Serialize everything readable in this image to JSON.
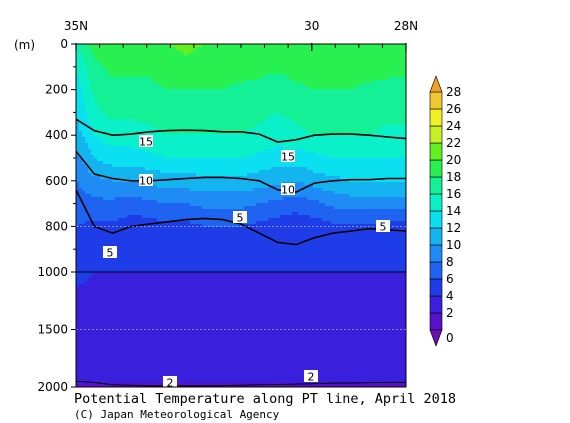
{
  "chart_data": {
    "type": "heatmap",
    "title": "Potential Temperature along PT line, April 2018",
    "credit": "(C) Japan Meteorological Agency",
    "ylabel": "(m)",
    "x_axis": {
      "position": "top",
      "ticks": [
        {
          "label": "35N",
          "lat": 35
        },
        {
          "label": "30",
          "lat": 30
        },
        {
          "label": "28N",
          "lat": 28
        }
      ],
      "range": [
        35,
        28
      ]
    },
    "y_axis": {
      "ticks": [
        0,
        200,
        400,
        600,
        800,
        1000,
        1500,
        2000
      ],
      "range": [
        0,
        2000
      ],
      "scale": "piecewise linear (0–1000 m expanded)"
    },
    "colorbar": {
      "levels": [
        0,
        2,
        4,
        6,
        8,
        10,
        12,
        14,
        16,
        18,
        20,
        22,
        24,
        26,
        28
      ],
      "labels": [
        "0",
        "2",
        "4",
        "6",
        "8",
        "10",
        "12",
        "14",
        "16",
        "18",
        "20",
        "22",
        "24",
        "26",
        "28"
      ],
      "colors": [
        "#5a10c8",
        "#3a20dc",
        "#1e3ce8",
        "#1e64f0",
        "#1e8cf4",
        "#14b4f0",
        "#0ae0f0",
        "#0af0c8",
        "#14f096",
        "#28f050",
        "#64f020",
        "#c8f028",
        "#f0f028",
        "#f0c832"
      ]
    },
    "contour_labels": [
      "15",
      "15",
      "10",
      "10",
      "5",
      "5",
      "5",
      "2",
      "2"
    ],
    "sections": [
      {
        "depth": 0,
        "temps": [
          16,
          19,
          19.5,
          19,
          19.5,
          20,
          20.5,
          20,
          19.5,
          19.5,
          19,
          19.5,
          20,
          19.5,
          19.5,
          20,
          19.5,
          19.5,
          19
        ]
      },
      {
        "depth": 100,
        "temps": [
          14,
          17.5,
          18.5,
          18.5,
          18.5,
          19,
          19.5,
          19,
          19,
          19,
          18.5,
          18.5,
          19,
          19,
          19,
          19,
          19,
          18.5,
          18.5
        ]
      },
      {
        "depth": 200,
        "temps": [
          13,
          16.5,
          17.5,
          17.5,
          17.5,
          18,
          18,
          18,
          18,
          17.5,
          17.5,
          16.5,
          17.5,
          18,
          18,
          18,
          17.5,
          17.5,
          17.5
        ]
      },
      {
        "depth": 300,
        "temps": [
          12,
          15.5,
          16.5,
          16.5,
          16.5,
          17,
          17,
          17,
          17,
          17,
          16.5,
          16,
          16.5,
          17,
          17,
          17,
          17,
          16.5,
          16.5
        ]
      },
      {
        "depth": 400,
        "temps": [
          11,
          14,
          15,
          15,
          15.5,
          16,
          16,
          16,
          16,
          16,
          15.5,
          15,
          15.5,
          16,
          16,
          16,
          16,
          15.5,
          15.5
        ]
      },
      {
        "depth": 500,
        "temps": [
          9.5,
          12,
          13,
          13,
          13.5,
          14,
          14,
          14,
          14,
          14,
          13.5,
          13,
          13,
          13.5,
          14,
          14,
          14,
          14,
          14
        ]
      },
      {
        "depth": 600,
        "temps": [
          8,
          9.5,
          10,
          10,
          10.5,
          11,
          11,
          11.5,
          11.5,
          11.5,
          11,
          10.5,
          10,
          11,
          11.5,
          12,
          12,
          12,
          12
        ]
      },
      {
        "depth": 700,
        "temps": [
          7,
          7.5,
          7.5,
          7,
          7.5,
          8,
          8,
          8.5,
          8.5,
          8.5,
          8,
          7.5,
          7,
          7.5,
          8.5,
          9,
          9,
          9,
          9
        ]
      },
      {
        "depth": 800,
        "temps": [
          6,
          5.5,
          5.5,
          5,
          5,
          5.5,
          5.5,
          6,
          6,
          6,
          5.5,
          5,
          4.5,
          5,
          5.5,
          5.5,
          5.5,
          5.5,
          5
        ]
      },
      {
        "depth": 900,
        "temps": [
          5,
          4.5,
          4.5,
          4.5,
          4.5,
          4.5,
          4.5,
          4.5,
          4.5,
          4.5,
          4.5,
          4.5,
          4,
          4.5,
          4.5,
          4.5,
          4.5,
          4.5,
          4.5
        ]
      },
      {
        "depth": 1000,
        "temps": [
          4.5,
          4,
          4,
          4,
          4,
          4,
          4,
          4,
          4,
          4,
          4,
          4,
          4,
          4,
          4,
          4,
          4,
          4,
          4
        ]
      },
      {
        "depth": 1250,
        "temps": [
          3.5,
          3.5,
          3.5,
          3.5,
          3.5,
          3.5,
          3.5,
          3.5,
          3.5,
          3.5,
          3.5,
          3.5,
          3.5,
          3.5,
          3.5,
          3.5,
          3.5,
          3.5,
          3.5
        ]
      },
      {
        "depth": 1500,
        "temps": [
          3,
          3,
          3,
          3,
          3,
          3,
          3,
          3,
          3,
          3,
          3,
          3,
          3,
          3,
          3,
          3,
          3,
          3,
          3
        ]
      },
      {
        "depth": 1750,
        "temps": [
          2.5,
          2.5,
          2.5,
          2.5,
          2.5,
          2.5,
          2.5,
          2.5,
          2.5,
          2.5,
          2.5,
          2.5,
          2.5,
          2.5,
          2.5,
          2.5,
          2.5,
          2.5,
          2.5
        ]
      },
      {
        "depth": 2000,
        "temps": [
          1.9,
          1.9,
          1.9,
          1.9,
          1.9,
          1.9,
          1.9,
          1.9,
          1.9,
          1.9,
          1.9,
          1.9,
          1.9,
          1.9,
          1.9,
          1.9,
          1.9,
          1.9,
          1.9
        ]
      }
    ],
    "isotherms": [
      {
        "value": 15,
        "bold": true,
        "depths": [
          330,
          380,
          400,
          395,
          385,
          380,
          378,
          380,
          385,
          385,
          395,
          430,
          420,
          400,
          395,
          395,
          400,
          408,
          415
        ]
      },
      {
        "value": 10,
        "bold": true,
        "depths": [
          470,
          570,
          590,
          600,
          600,
          595,
          590,
          585,
          585,
          590,
          600,
          640,
          650,
          610,
          600,
          595,
          595,
          590,
          590
        ]
      },
      {
        "value": 5,
        "bold": true,
        "depths": [
          640,
          800,
          830,
          800,
          790,
          780,
          770,
          765,
          770,
          790,
          830,
          870,
          880,
          850,
          830,
          820,
          810,
          815,
          820
        ]
      },
      {
        "value": 2,
        "bold": false,
        "depths": [
          1950,
          1960,
          1980,
          1985,
          1990,
          1990,
          1990,
          1990,
          1988,
          1985,
          1980,
          1978,
          1975,
          1970,
          1965,
          1965,
          1962,
          1960,
          1960
        ]
      }
    ]
  }
}
